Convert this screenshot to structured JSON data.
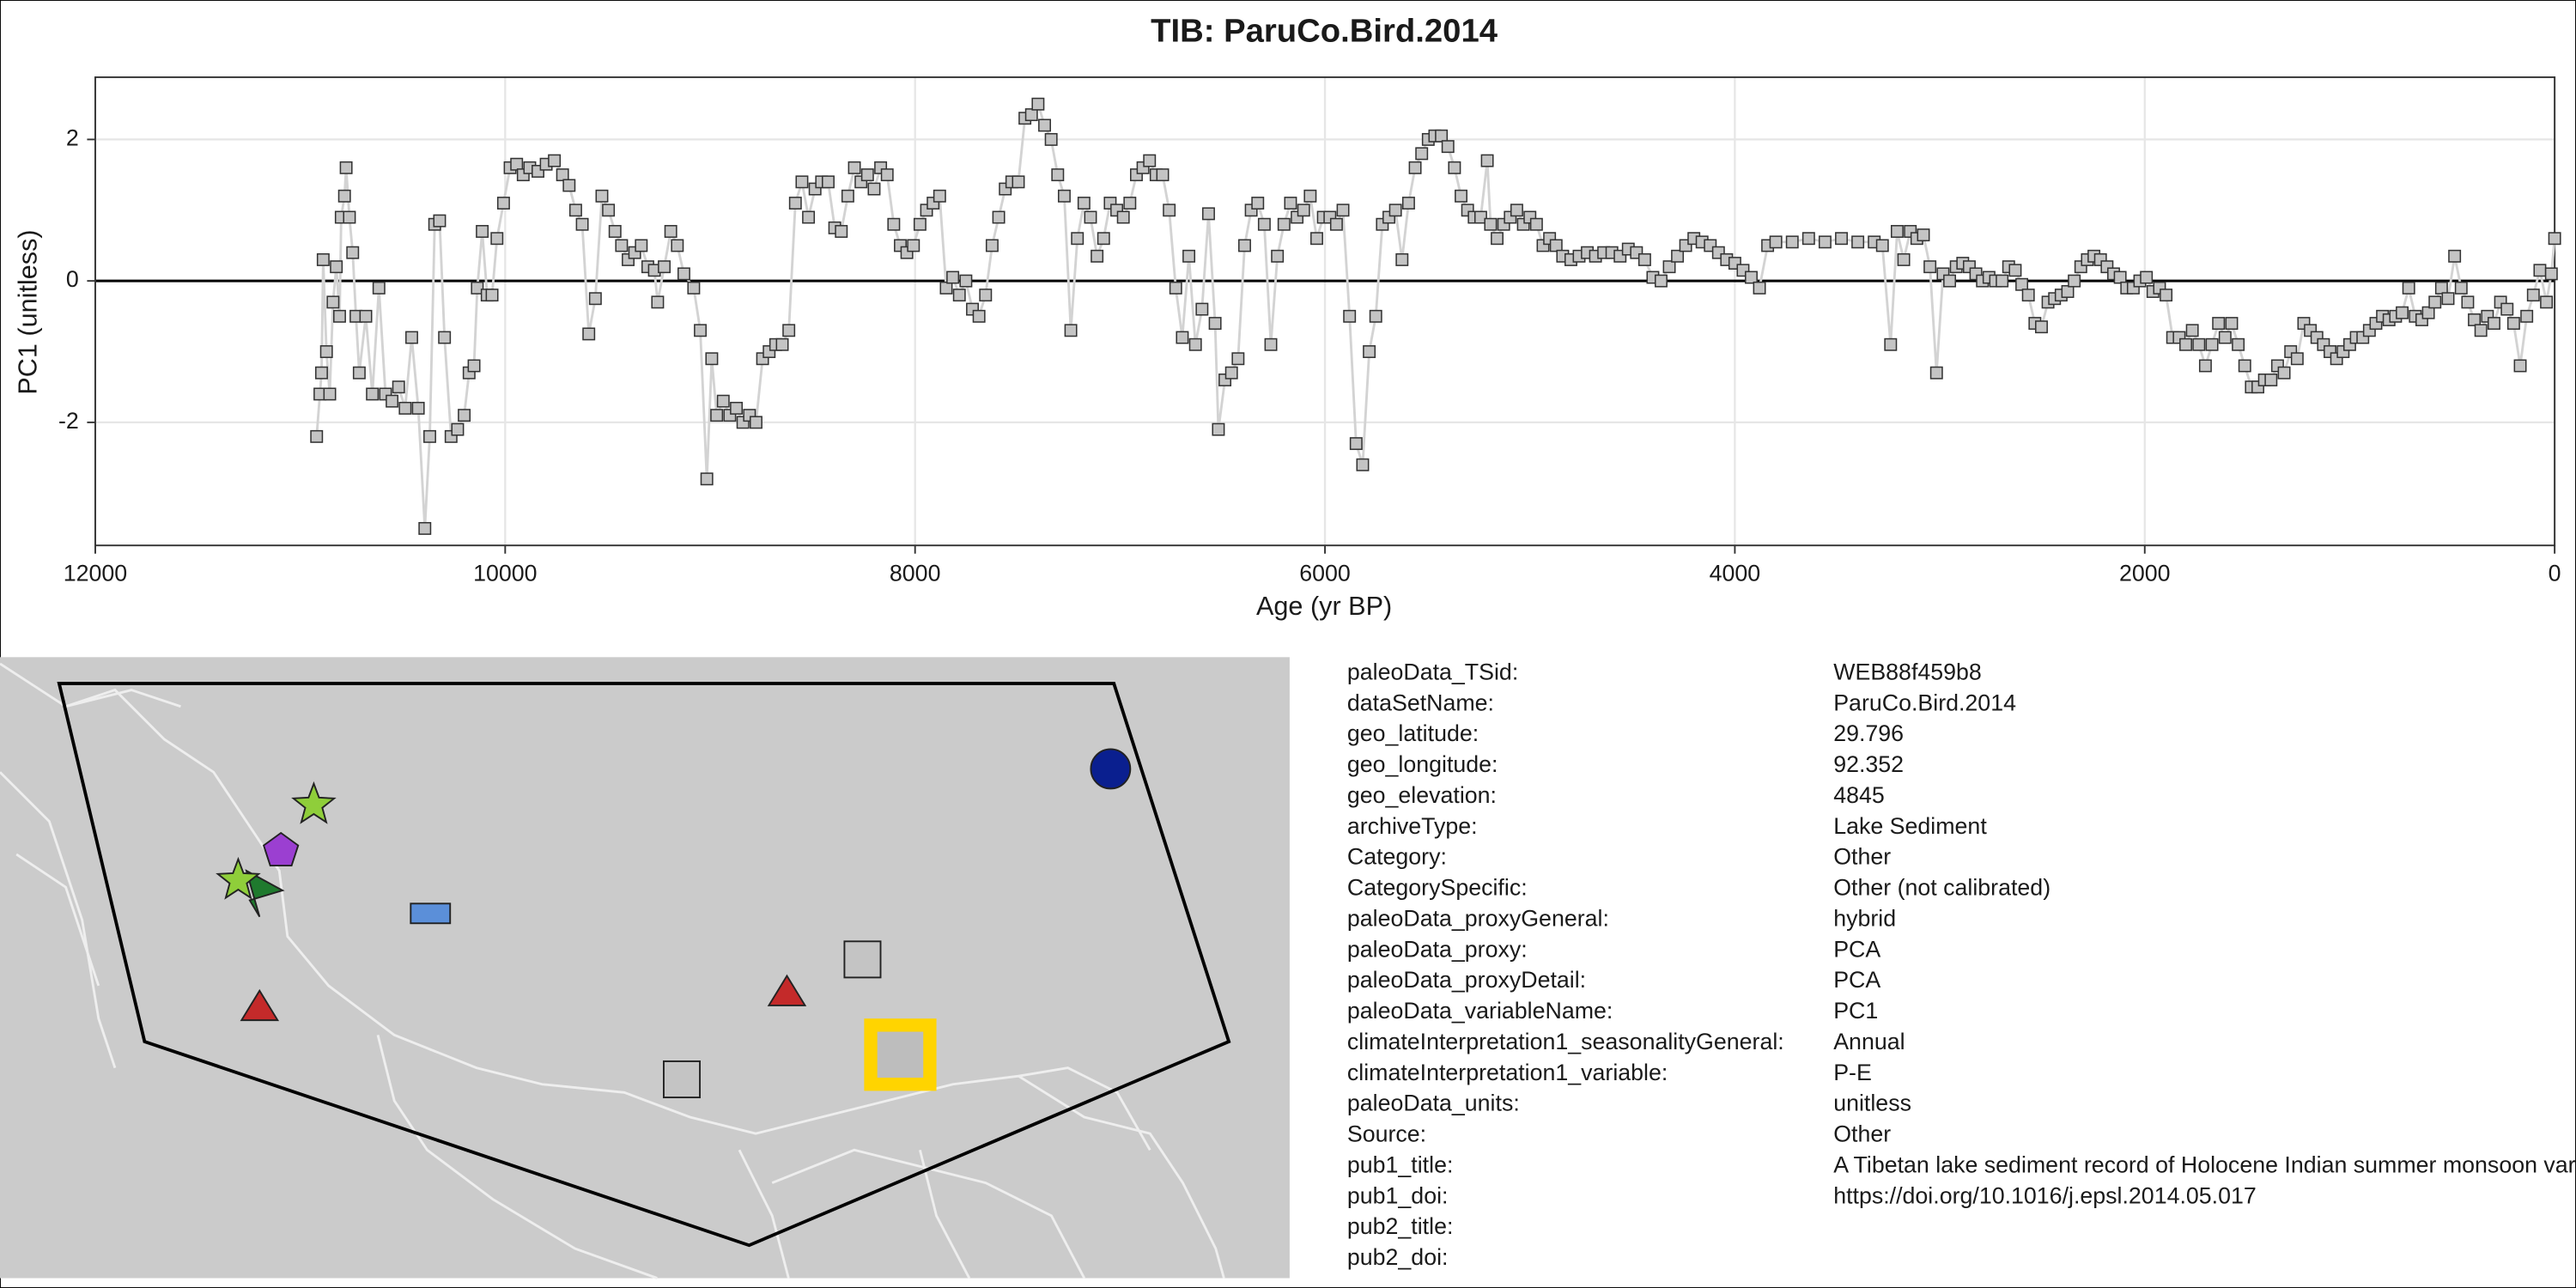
{
  "chart_data": {
    "type": "line",
    "title": "TIB: ParuCo.Bird.2014",
    "x_label": "Age (yr BP)",
    "y_label": "PC1 (unitless)",
    "xlim": [
      12000,
      0
    ],
    "ylim": [
      -3.74,
      2.88
    ],
    "xticks": [
      12000,
      10000,
      8000,
      6000,
      4000,
      2000,
      0
    ],
    "yticks": [
      -2,
      0,
      2
    ],
    "grid": true,
    "reference_line": 0,
    "line_color": "#d3d3d3",
    "marker_color": "#c4c4c4",
    "x": [
      10920,
      10904,
      10896,
      10888,
      10872,
      10856,
      10840,
      10824,
      10808,
      10800,
      10784,
      10776,
      10760,
      10744,
      10728,
      10712,
      10680,
      10648,
      10616,
      10584,
      10552,
      10520,
      10488,
      10456,
      10424,
      10392,
      10368,
      10344,
      10320,
      10296,
      10264,
      10232,
      10200,
      10176,
      10152,
      10136,
      10112,
      10088,
      10064,
      10040,
      10008,
      9976,
      9944,
      9912,
      9880,
      9840,
      9800,
      9760,
      9720,
      9688,
      9656,
      9624,
      9592,
      9560,
      9528,
      9496,
      9464,
      9432,
      9400,
      9368,
      9336,
      9304,
      9272,
      9256,
      9224,
      9192,
      9160,
      9128,
      9080,
      9048,
      9016,
      8992,
      8968,
      8936,
      8904,
      8872,
      8840,
      8808,
      8776,
      8744,
      8712,
      8680,
      8648,
      8616,
      8584,
      8552,
      8520,
      8488,
      8456,
      8424,
      8392,
      8360,
      8328,
      8296,
      8264,
      8232,
      8200,
      8168,
      8136,
      8104,
      8072,
      8040,
      8008,
      7976,
      7944,
      7912,
      7880,
      7848,
      7816,
      7784,
      7752,
      7720,
      7688,
      7656,
      7624,
      7592,
      7560,
      7528,
      7496,
      7464,
      7432,
      7400,
      7368,
      7336,
      7304,
      7272,
      7240,
      7208,
      7176,
      7144,
      7112,
      7080,
      7048,
      7016,
      6984,
      6952,
      6920,
      6888,
      6856,
      6824,
      6792,
      6760,
      6728,
      6696,
      6664,
      6632,
      6600,
      6568,
      6536,
      6520,
      6488,
      6456,
      6424,
      6392,
      6360,
      6328,
      6296,
      6264,
      6232,
      6200,
      6168,
      6136,
      6104,
      6072,
      6040,
      6008,
      5976,
      5944,
      5912,
      5880,
      5848,
      5816,
      5784,
      5752,
      5720,
      5688,
      5656,
      5624,
      5592,
      5560,
      5528,
      5496,
      5464,
      5432,
      5400,
      5368,
      5336,
      5304,
      5272,
      5240,
      5208,
      5192,
      5160,
      5128,
      5096,
      5064,
      5032,
      5000,
      4968,
      4936,
      4904,
      4872,
      4840,
      4800,
      4760,
      4720,
      4680,
      4640,
      4600,
      4560,
      4520,
      4480,
      4440,
      4400,
      4360,
      4320,
      4280,
      4240,
      4200,
      4160,
      4120,
      4080,
      4040,
      4000,
      3960,
      3920,
      3880,
      3840,
      3800,
      3720,
      3640,
      3560,
      3480,
      3400,
      3320,
      3280,
      3240,
      3208,
      3176,
      3144,
      3112,
      3080,
      3048,
      3016,
      2984,
      2952,
      2920,
      2888,
      2856,
      2824,
      2792,
      2760,
      2728,
      2696,
      2664,
      2632,
      2600,
      2568,
      2536,
      2504,
      2472,
      2440,
      2408,
      2376,
      2344,
      2312,
      2280,
      2248,
      2216,
      2184,
      2152,
      2120,
      2088,
      2056,
      2024,
      1992,
      1960,
      1928,
      1896,
      1864,
      1832,
      1800,
      1768,
      1736,
      1704,
      1672,
      1640,
      1608,
      1576,
      1544,
      1512,
      1480,
      1448,
      1416,
      1384,
      1352,
      1320,
      1288,
      1256,
      1224,
      1192,
      1160,
      1128,
      1096,
      1064,
      1032,
      1000,
      968,
      936,
      904,
      872,
      840,
      808,
      776,
      744,
      712,
      680,
      648,
      616,
      584,
      552,
      520,
      488,
      456,
      424,
      392,
      360,
      328,
      296,
      264,
      232,
      200,
      168,
      136,
      104,
      72,
      40,
      16,
      0
    ],
    "values": [
      -2.2,
      -1.6,
      -1.3,
      0.3,
      -1.0,
      -1.6,
      -0.3,
      0.2,
      -0.5,
      0.9,
      1.2,
      1.6,
      0.9,
      0.4,
      -0.5,
      -1.3,
      -0.5,
      -1.6,
      -0.1,
      -1.6,
      -1.7,
      -1.5,
      -1.8,
      -0.8,
      -1.8,
      -3.5,
      -2.2,
      0.8,
      0.85,
      -0.8,
      -2.2,
      -2.1,
      -1.9,
      -1.3,
      -1.2,
      -0.1,
      0.7,
      -0.2,
      -0.2,
      0.6,
      1.1,
      1.6,
      1.65,
      1.5,
      1.6,
      1.55,
      1.65,
      1.7,
      1.5,
      1.35,
      1.0,
      0.8,
      -0.75,
      -0.25,
      1.2,
      1.0,
      0.7,
      0.5,
      0.3,
      0.4,
      0.5,
      0.2,
      0.15,
      -0.3,
      0.2,
      0.7,
      0.5,
      0.1,
      -0.1,
      -0.7,
      -2.8,
      -1.1,
      -1.9,
      -1.7,
      -1.9,
      -1.8,
      -2.0,
      -1.9,
      -2.0,
      -1.1,
      -1.0,
      -0.9,
      -0.9,
      -0.7,
      1.1,
      1.4,
      0.9,
      1.3,
      1.4,
      1.4,
      0.75,
      0.7,
      1.2,
      1.6,
      1.4,
      1.5,
      1.3,
      1.6,
      1.5,
      0.8,
      0.5,
      0.4,
      0.5,
      0.8,
      1.0,
      1.1,
      1.2,
      -0.1,
      0.05,
      -0.2,
      0.0,
      -0.4,
      -0.5,
      -0.2,
      0.5,
      0.9,
      1.3,
      1.4,
      1.4,
      2.3,
      2.35,
      2.5,
      2.2,
      2.0,
      1.5,
      1.2,
      -0.7,
      0.6,
      1.1,
      0.9,
      0.35,
      0.6,
      1.1,
      1.0,
      0.9,
      1.1,
      1.5,
      1.6,
      1.7,
      1.5,
      1.5,
      1.0,
      -0.1,
      -0.8,
      0.35,
      -0.9,
      -0.4,
      0.95,
      -0.6,
      -2.1,
      -1.4,
      -1.3,
      -1.1,
      0.5,
      1.0,
      1.1,
      0.8,
      -0.9,
      0.35,
      0.8,
      1.1,
      0.9,
      1.0,
      1.2,
      0.6,
      0.9,
      0.9,
      0.8,
      1.0,
      -0.5,
      -2.3,
      -2.6,
      -1.0,
      -0.5,
      0.8,
      0.9,
      1.0,
      0.3,
      1.1,
      1.6,
      1.8,
      2.0,
      2.05,
      2.05,
      1.9,
      1.6,
      1.2,
      1.0,
      0.9,
      0.9,
      1.7,
      0.8,
      0.6,
      0.8,
      0.9,
      1.0,
      0.8,
      0.9,
      0.8,
      0.5,
      0.6,
      0.5,
      0.35,
      0.3,
      0.35,
      0.4,
      0.35,
      0.4,
      0.4,
      0.35,
      0.45,
      0.4,
      0.3,
      0.05,
      0.0,
      0.2,
      0.35,
      0.5,
      0.6,
      0.55,
      0.5,
      0.4,
      0.3,
      0.25,
      0.15,
      0.05,
      -0.1,
      0.5,
      0.55,
      0.55,
      0.6,
      0.55,
      0.6,
      0.55,
      0.55,
      0.5,
      -0.9,
      0.7,
      0.3,
      0.7,
      0.6,
      0.65,
      0.2,
      -1.3,
      0.1,
      0.0,
      0.2,
      0.25,
      0.2,
      0.1,
      0.0,
      0.05,
      0.0,
      0.0,
      0.2,
      0.15,
      -0.05,
      -0.2,
      -0.6,
      -0.65,
      -0.3,
      -0.25,
      -0.2,
      -0.15,
      0.0,
      0.2,
      0.3,
      0.35,
      0.3,
      0.2,
      0.1,
      0.05,
      -0.1,
      -0.1,
      0.0,
      0.05,
      -0.15,
      -0.1,
      -0.2,
      -0.8,
      -0.8,
      -0.9,
      -0.7,
      -0.9,
      -1.2,
      -0.9,
      -0.6,
      -0.8,
      -0.6,
      -0.9,
      -1.2,
      -1.5,
      -1.5,
      -1.4,
      -1.4,
      -1.2,
      -1.3,
      -1.0,
      -1.1,
      -0.6,
      -0.7,
      -0.8,
      -0.9,
      -1.0,
      -1.1,
      -1.0,
      -0.9,
      -0.8,
      -0.8,
      -0.7,
      -0.6,
      -0.5,
      -0.55,
      -0.5,
      -0.45,
      -0.1,
      -0.5,
      -0.55,
      -0.45,
      -0.3,
      -0.1,
      -0.25,
      0.35,
      -0.1,
      -0.3,
      -0.55,
      -0.7,
      -0.5,
      -0.6,
      -0.3,
      -0.4,
      -0.6,
      -1.2,
      -0.5,
      -0.2,
      0.15,
      -0.3,
      0.1,
      0.6
    ]
  },
  "metadata": {
    "rows": [
      [
        "paleoData_TSid:",
        "WEB88f459b8"
      ],
      [
        "dataSetName:",
        "ParuCo.Bird.2014"
      ],
      [
        "geo_latitude:",
        "29.796"
      ],
      [
        "geo_longitude:",
        "92.352"
      ],
      [
        "geo_elevation:",
        "4845"
      ],
      [
        "archiveType:",
        "Lake Sediment"
      ],
      [
        "Category:",
        "Other"
      ],
      [
        "CategorySpecific:",
        "Other (not calibrated)"
      ],
      [
        "paleoData_proxyGeneral:",
        "hybrid"
      ],
      [
        "paleoData_proxy:",
        "PCA"
      ],
      [
        "paleoData_proxyDetail:",
        "PCA"
      ],
      [
        "paleoData_variableName:",
        "PC1"
      ],
      [
        "climateInterpretation1_seasonalityGeneral:",
        "Annual"
      ],
      [
        "climateInterpretation1_variable:",
        "P-E"
      ],
      [
        "paleoData_units:",
        "unitless"
      ],
      [
        "Source:",
        "Other"
      ],
      [
        "pub1_title:",
        "A Tibetan lake sediment record of Holocene Indian summer monsoon variability"
      ],
      [
        "pub1_doi:",
        "https://doi.org/10.1016/j.epsl.2014.05.017"
      ],
      [
        "pub2_title:"
      ],
      [
        "pub2_doi:"
      ]
    ]
  }
}
